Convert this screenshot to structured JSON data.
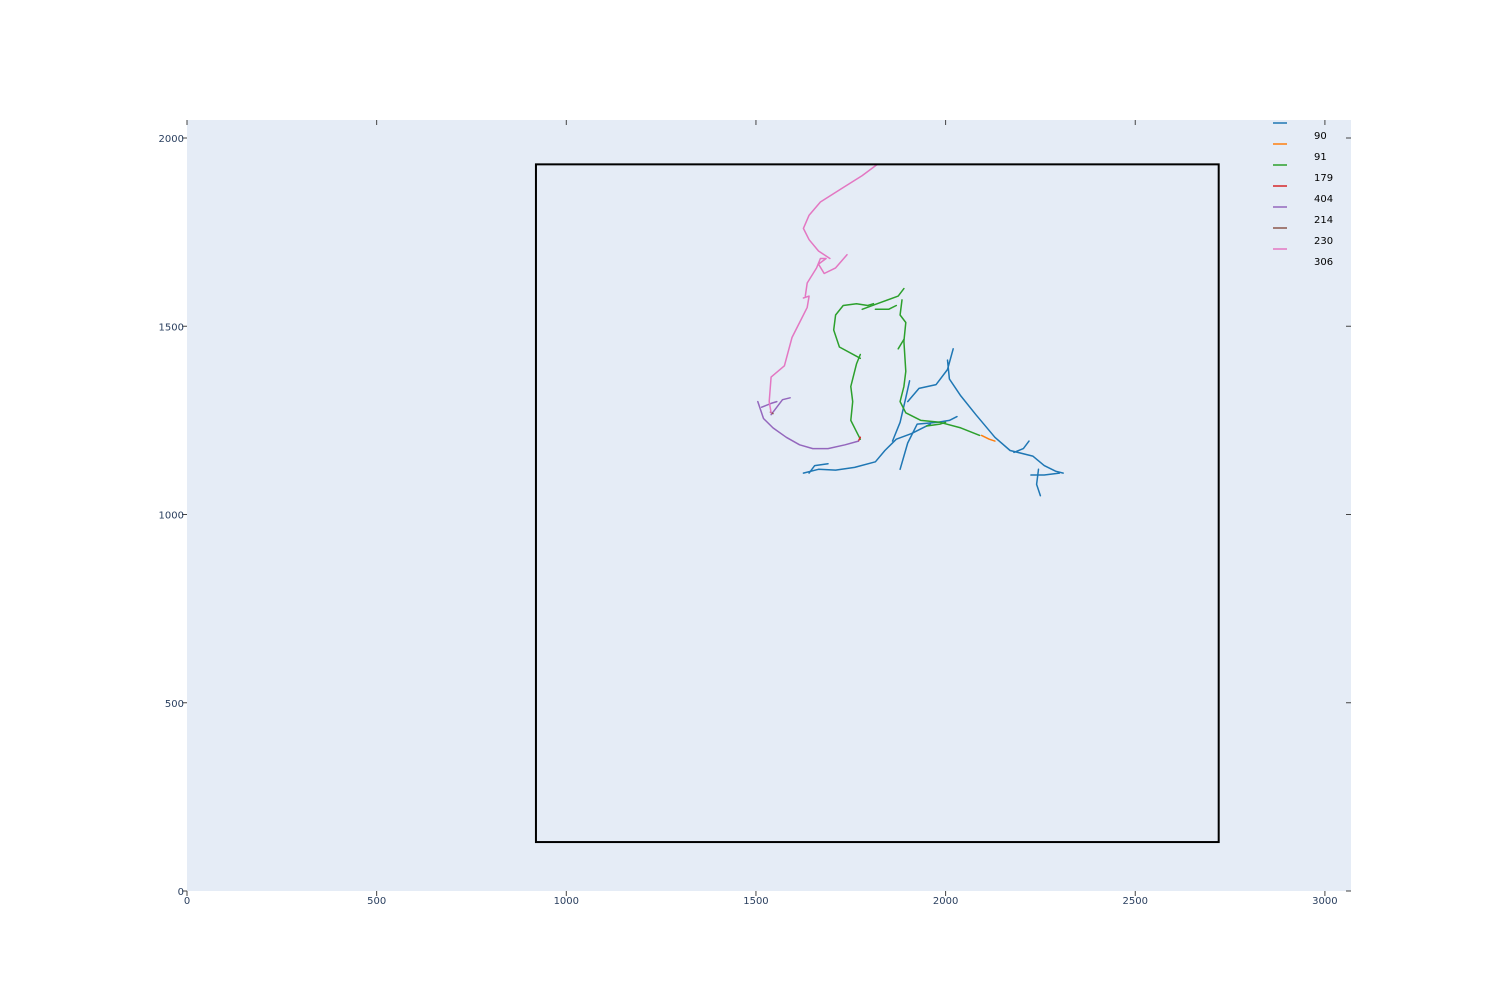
{
  "chart_data": {
    "type": "line",
    "title": "",
    "xlabel": "",
    "ylabel": "",
    "xlim": [
      0,
      3070
    ],
    "ylim": [
      0,
      2050
    ],
    "x_ticks": [
      0,
      500,
      1000,
      1500,
      2000,
      2500,
      3000
    ],
    "y_ticks": [
      0,
      500,
      1000,
      1500,
      2000
    ],
    "grid": false,
    "legend_position": "top-right",
    "plot_background": "#e5ecf6",
    "tick_label_color": "#2a3f5f",
    "boundary_box": {
      "x0": 920,
      "x1": 2720,
      "y0": 130,
      "y1": 1930,
      "color": "#000000"
    },
    "series": [
      {
        "name": "90",
        "color": "#1f77b4",
        "segments": [
          [
            [
              1690,
              1135
            ],
            [
              1655,
              1130
            ],
            [
              1640,
              1110
            ]
          ],
          [
            [
              1625,
              1110
            ],
            [
              1665,
              1120
            ],
            [
              1710,
              1118
            ],
            [
              1760,
              1125
            ],
            [
              1815,
              1140
            ],
            [
              1840,
              1170
            ],
            [
              1870,
              1200
            ],
            [
              1910,
              1215
            ],
            [
              1960,
              1240
            ]
          ],
          [
            [
              1860,
              1195
            ],
            [
              1880,
              1245
            ],
            [
              1895,
              1310
            ],
            [
              1905,
              1355
            ]
          ],
          [
            [
              1880,
              1120
            ],
            [
              1900,
              1190
            ],
            [
              1925,
              1240
            ],
            [
              1980,
              1245
            ],
            [
              2010,
              1250
            ],
            [
              2030,
              1260
            ]
          ],
          [
            [
              1900,
              1300
            ],
            [
              1930,
              1335
            ],
            [
              1975,
              1345
            ],
            [
              2005,
              1385
            ],
            [
              2020,
              1440
            ]
          ],
          [
            [
              2005,
              1410
            ],
            [
              2010,
              1360
            ],
            [
              2040,
              1315
            ],
            [
              2080,
              1265
            ],
            [
              2130,
              1205
            ],
            [
              2170,
              1170
            ],
            [
              2230,
              1155
            ],
            [
              2260,
              1130
            ],
            [
              2290,
              1115
            ],
            [
              2310,
              1110
            ]
          ],
          [
            [
              2180,
              1165
            ],
            [
              2205,
              1175
            ],
            [
              2220,
              1195
            ]
          ],
          [
            [
              2245,
              1120
            ],
            [
              2240,
              1080
            ],
            [
              2250,
              1050
            ]
          ],
          [
            [
              2225,
              1105
            ],
            [
              2260,
              1105
            ],
            [
              2300,
              1110
            ]
          ]
        ]
      },
      {
        "name": "91",
        "color": "#ff7f0e",
        "segments": [
          [
            [
              2095,
              1210
            ],
            [
              2115,
              1200
            ],
            [
              2130,
              1195
            ]
          ]
        ]
      },
      {
        "name": "179",
        "color": "#2ca02c",
        "segments": [
          [
            [
              1775,
              1200
            ],
            [
              1765,
              1220
            ],
            [
              1750,
              1250
            ],
            [
              1755,
              1300
            ],
            [
              1750,
              1340
            ],
            [
              1765,
              1400
            ],
            [
              1775,
              1425
            ]
          ],
          [
            [
              1775,
              1415
            ],
            [
              1720,
              1445
            ],
            [
              1705,
              1490
            ],
            [
              1710,
              1530
            ],
            [
              1730,
              1555
            ],
            [
              1765,
              1560
            ],
            [
              1795,
              1555
            ],
            [
              1810,
              1560
            ]
          ],
          [
            [
              1780,
              1545
            ],
            [
              1820,
              1560
            ],
            [
              1875,
              1580
            ],
            [
              1890,
              1600
            ]
          ],
          [
            [
              1885,
              1570
            ],
            [
              1880,
              1530
            ],
            [
              1895,
              1510
            ],
            [
              1890,
              1460
            ],
            [
              1895,
              1380
            ],
            [
              1890,
              1340
            ],
            [
              1880,
              1300
            ],
            [
              1895,
              1270
            ],
            [
              1935,
              1250
            ],
            [
              1985,
              1245
            ],
            [
              2040,
              1230
            ],
            [
              2090,
              1210
            ]
          ],
          [
            [
              1950,
              1235
            ],
            [
              1985,
              1240
            ],
            [
              2000,
              1245
            ]
          ],
          [
            [
              1815,
              1545
            ],
            [
              1850,
              1545
            ],
            [
              1870,
              1555
            ]
          ],
          [
            [
              1875,
              1440
            ],
            [
              1890,
              1465
            ]
          ]
        ]
      },
      {
        "name": "404",
        "color": "#d62728",
        "segments": [
          [
            [
              1770,
              1195
            ],
            [
              1775,
              1205
            ]
          ]
        ]
      },
      {
        "name": "214",
        "color": "#9467bd",
        "segments": [
          [
            [
              1505,
              1300
            ],
            [
              1520,
              1255
            ],
            [
              1545,
              1230
            ],
            [
              1580,
              1205
            ],
            [
              1615,
              1185
            ],
            [
              1650,
              1175
            ],
            [
              1690,
              1175
            ],
            [
              1735,
              1185
            ],
            [
              1770,
              1195
            ]
          ],
          [
            [
              1515,
              1285
            ],
            [
              1540,
              1295
            ],
            [
              1555,
              1300
            ]
          ],
          [
            [
              1540,
              1265
            ],
            [
              1555,
              1285
            ],
            [
              1570,
              1305
            ],
            [
              1590,
              1310
            ]
          ]
        ]
      },
      {
        "name": "230",
        "color": "#8c564b",
        "segments": [
          [
            [
              1538,
              1272
            ],
            [
              1545,
              1268
            ]
          ]
        ]
      },
      {
        "name": "306",
        "color": "#e377c2",
        "segments": [
          [
            [
              1540,
              1270
            ],
            [
              1535,
              1300
            ],
            [
              1540,
              1365
            ],
            [
              1575,
              1395
            ],
            [
              1595,
              1470
            ],
            [
              1615,
              1510
            ],
            [
              1635,
              1550
            ],
            [
              1640,
              1580
            ],
            [
              1625,
              1575
            ]
          ],
          [
            [
              1630,
              1580
            ],
            [
              1635,
              1615
            ],
            [
              1660,
              1655
            ],
            [
              1670,
              1680
            ],
            [
              1685,
              1680
            ],
            [
              1665,
              1665
            ],
            [
              1680,
              1640
            ],
            [
              1710,
              1655
            ],
            [
              1740,
              1690
            ]
          ],
          [
            [
              1695,
              1680
            ],
            [
              1665,
              1700
            ],
            [
              1640,
              1730
            ],
            [
              1625,
              1760
            ],
            [
              1640,
              1795
            ],
            [
              1670,
              1830
            ],
            [
              1725,
              1865
            ],
            [
              1780,
              1900
            ],
            [
              1820,
              1930
            ]
          ]
        ]
      }
    ]
  }
}
